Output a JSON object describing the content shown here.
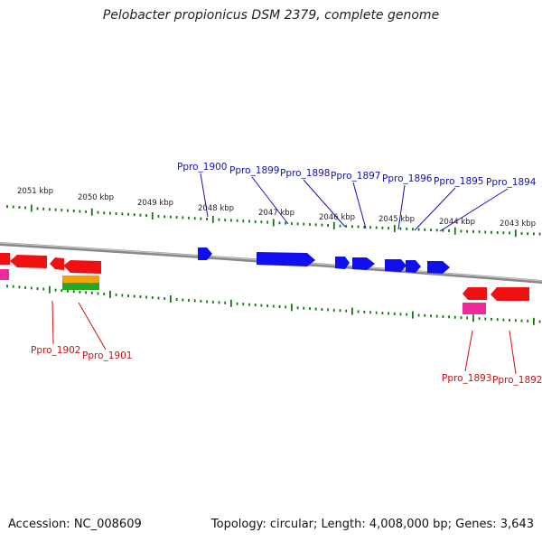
{
  "header": {
    "title": "Pelobacter propionicus DSM 2379, complete genome"
  },
  "footer": {
    "accession": "Accession: NC_008609",
    "summary": "Topology: circular; Length: 4,008,000 bp; Genes: 3,643"
  },
  "colors": {
    "forward_gene": "#1010ee",
    "reverse_gene": "#ee1111",
    "pink_feature": "#ee2a99",
    "orange_feature": "#f5a000",
    "green_feature": "#22aa22",
    "tick": "#117711",
    "axis": "#888888",
    "forward_label": "#1111bb",
    "reverse_label": "#cc1111"
  },
  "scale": {
    "unit": "kbp",
    "labels": [
      "2051 kbp",
      "2050 kbp",
      "2049 kbp",
      "2048 kbp",
      "2047 kbp",
      "2046 kbp",
      "2045 kbp",
      "2044 kbp",
      "2043 kbp"
    ]
  },
  "genes": {
    "forward": [
      "Ppro_1900",
      "Ppro_1899",
      "Ppro_1898",
      "Ppro_1897",
      "Ppro_1896",
      "Ppro_1895",
      "Ppro_1894"
    ],
    "reverse": [
      "Ppro_1902",
      "Ppro_1901",
      "Ppro_1893",
      "Ppro_1892"
    ]
  }
}
